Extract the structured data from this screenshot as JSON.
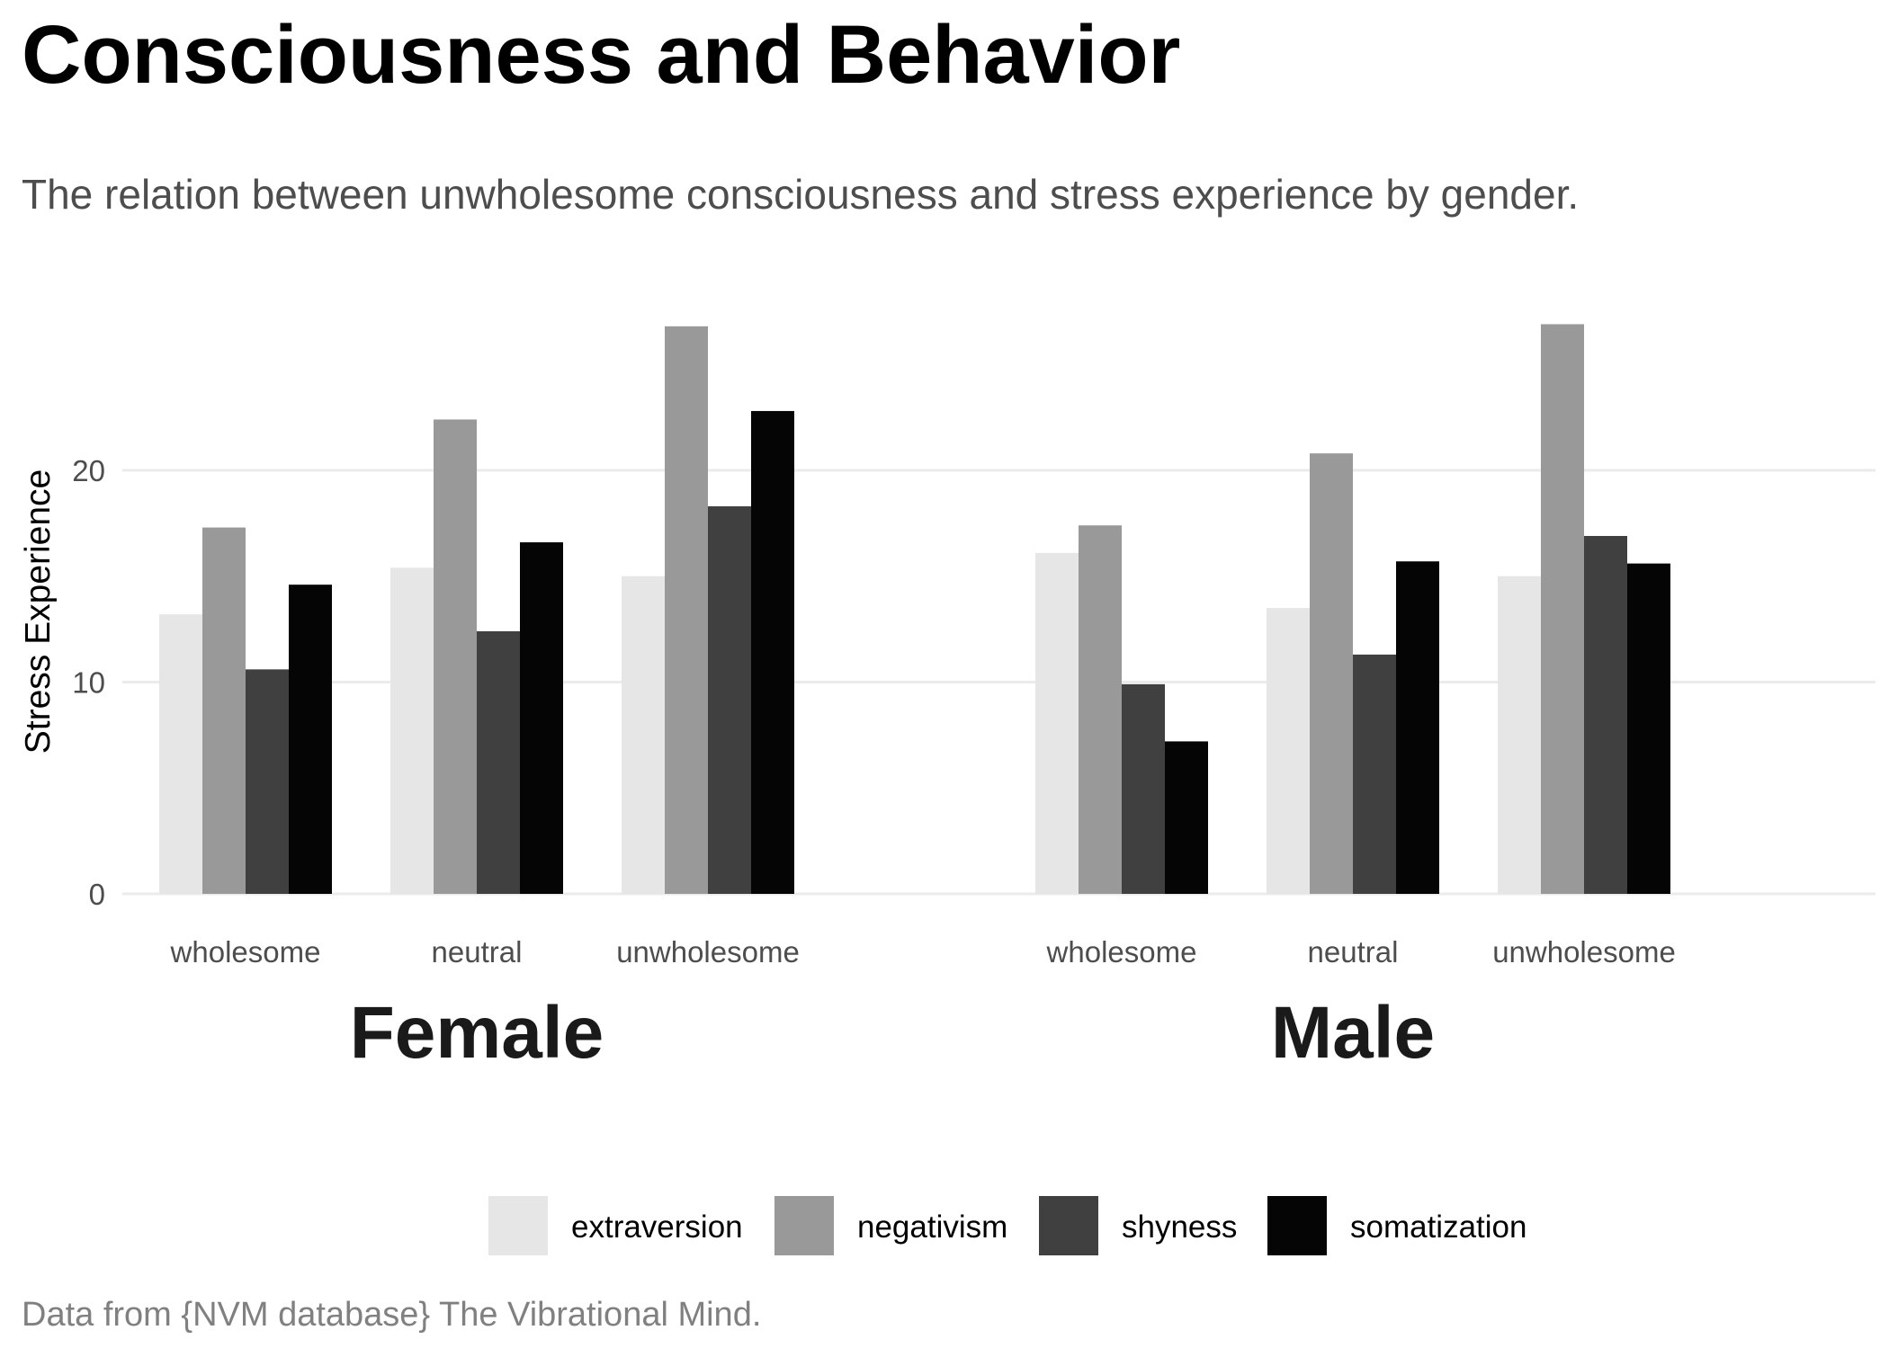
{
  "chart_data": {
    "type": "bar",
    "title": "Consciousness and Behavior",
    "subtitle": "The relation between unwholesome consciousness and stress experience by gender.",
    "caption": "Data from {NVM database} The Vibrational Mind.",
    "xlabel": "",
    "ylabel": "Stress Experience",
    "ylim": [
      0,
      28.5
    ],
    "yticks": [
      0,
      10,
      20
    ],
    "grid": true,
    "legend_position": "bottom",
    "categories": [
      "wholesome",
      "neutral",
      "unwholesome"
    ],
    "facets": [
      {
        "name": "Female",
        "series": [
          {
            "name": "extraversion",
            "color": "#e6e6e6",
            "values": [
              13.2,
              15.4,
              15.0
            ]
          },
          {
            "name": "negativism",
            "color": "#999999",
            "values": [
              17.3,
              22.4,
              26.8
            ]
          },
          {
            "name": "shyness",
            "color": "#404040",
            "values": [
              10.6,
              12.4,
              18.3
            ]
          },
          {
            "name": "somatization",
            "color": "#050505",
            "values": [
              14.6,
              16.6,
              22.8
            ]
          }
        ]
      },
      {
        "name": "Male",
        "series": [
          {
            "name": "extraversion",
            "color": "#e6e6e6",
            "values": [
              16.1,
              13.5,
              15.0
            ]
          },
          {
            "name": "negativism",
            "color": "#999999",
            "values": [
              17.4,
              20.8,
              26.9
            ]
          },
          {
            "name": "shyness",
            "color": "#404040",
            "values": [
              9.9,
              11.3,
              16.9
            ]
          },
          {
            "name": "somatization",
            "color": "#050505",
            "values": [
              7.2,
              15.7,
              15.6
            ]
          }
        ]
      }
    ]
  }
}
